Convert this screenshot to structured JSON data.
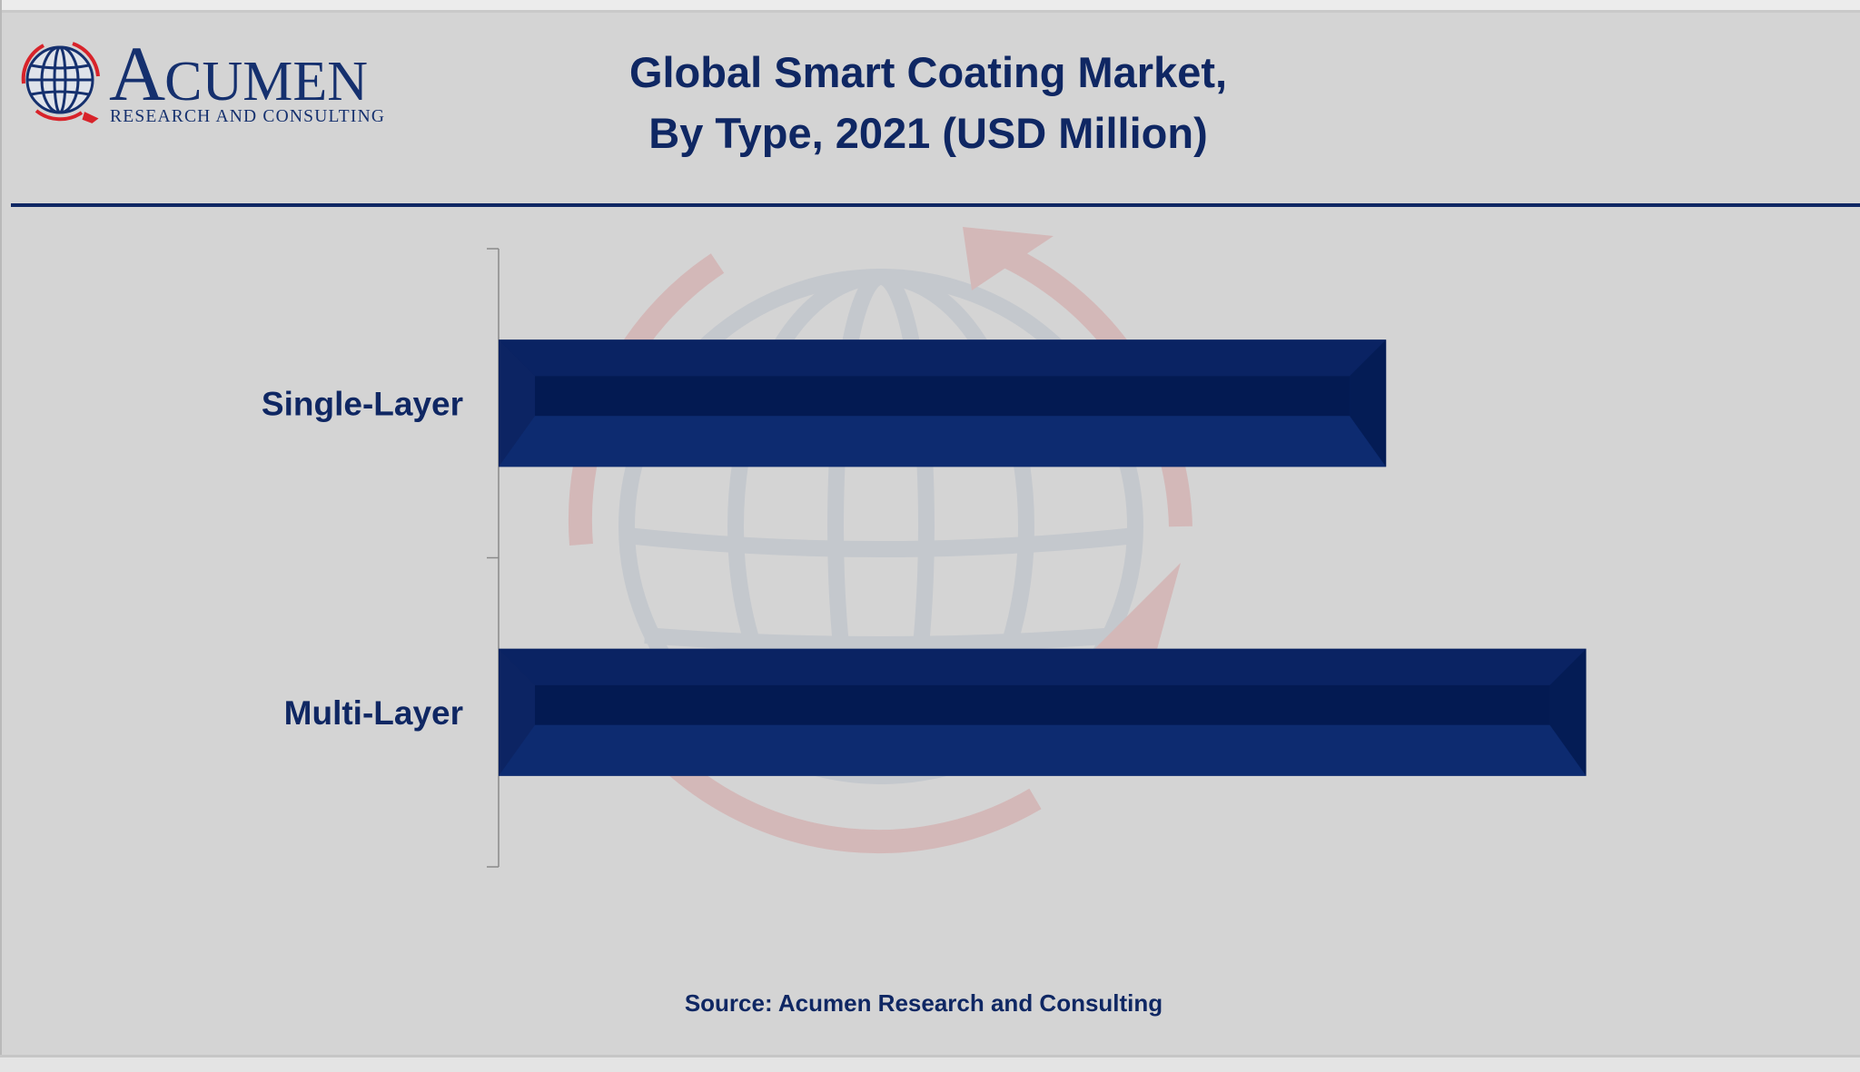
{
  "logo": {
    "word_initial": "A",
    "word_rest": "CUMEN",
    "subtitle": "RESEARCH AND CONSULTING"
  },
  "title_line1": "Global Smart Coating Market,",
  "title_line2": "By Type, 2021 (USD Million)",
  "source": "Source: Acumen Research and Consulting",
  "colors": {
    "bar": "#0c2463",
    "bar_dark": "#031a52",
    "title": "#0f2763",
    "background": "#d4d4d4"
  },
  "chart_data": {
    "type": "bar",
    "orientation": "horizontal",
    "title": "Global Smart Coating Market, By Type, 2021 (USD Million)",
    "categories": [
      "Single-Layer",
      "Multi-Layer"
    ],
    "values": [
      1020,
      1250
    ],
    "xlim": [
      0,
      1500
    ],
    "value_labels_shown": false,
    "axis_ticks_shown": false,
    "grid": false,
    "legend": "none"
  }
}
